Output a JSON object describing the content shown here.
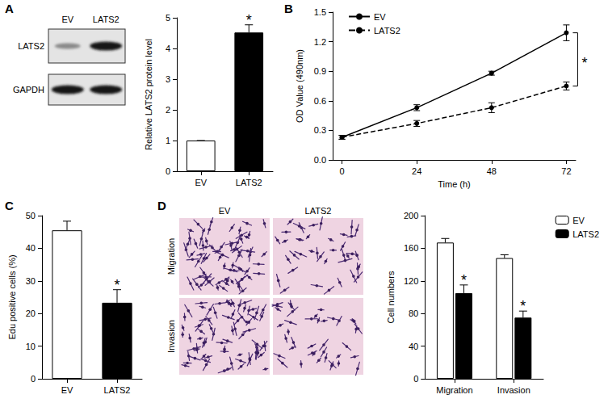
{
  "chart_data": [
    {
      "panel": "A",
      "type": "bar",
      "categories": [
        "EV",
        "LATS2"
      ],
      "values": [
        1,
        4.52
      ],
      "errors": [
        0,
        0.25
      ],
      "colors": [
        "#ffffff",
        "#000000"
      ],
      "ylabel": "Relative LATS2 protein level",
      "ylim": [
        0,
        5
      ],
      "yticks": [
        0,
        1,
        2,
        3,
        4,
        5
      ],
      "grid": false,
      "annotations": [
        {
          "category": "LATS2",
          "text": "*"
        }
      ]
    },
    {
      "panel": "B",
      "type": "line",
      "x": [
        0,
        24,
        48,
        72
      ],
      "series": [
        {
          "name": "EV",
          "color": "#000000",
          "marker": "circle",
          "line_style": "solid",
          "values": [
            0.23,
            0.53,
            0.88,
            1.29
          ],
          "errors": [
            0.02,
            0.03,
            0.02,
            0.08
          ]
        },
        {
          "name": "LATS2",
          "color": "#000000",
          "marker": "circle",
          "line_style": "dashed",
          "values": [
            0.23,
            0.37,
            0.53,
            0.75
          ],
          "errors": [
            0.02,
            0.03,
            0.05,
            0.04
          ]
        }
      ],
      "xlabel": "Time (h)",
      "ylabel": "OD Value (490nm)",
      "xlim": [
        -3,
        75
      ],
      "xticks": [
        0,
        24,
        48,
        72
      ],
      "ylim": [
        0,
        1.5
      ],
      "yticks": [
        {
          "value": 0,
          "label": "0.0"
        },
        0.3,
        0.6,
        0.9,
        1.2,
        1.5
      ],
      "legend": "top-left",
      "grid": false,
      "annotations": [
        {
          "x": 72,
          "between": [
            "EV",
            "LATS2"
          ],
          "text": "*"
        }
      ]
    },
    {
      "panel": "C",
      "type": "bar",
      "categories": [
        "EV",
        "LATS2"
      ],
      "values": [
        45.5,
        23.3
      ],
      "errors": [
        2.8,
        4
      ],
      "colors": [
        "#ffffff",
        "#000000"
      ],
      "ylabel": "Edu positive cells (%)",
      "ylim": [
        0,
        50
      ],
      "yticks": [
        0,
        10,
        20,
        30,
        40,
        50
      ],
      "grid": false,
      "annotations": [
        {
          "category": "LATS2",
          "text": "*"
        }
      ]
    },
    {
      "panel": "D",
      "type": "bar",
      "categories": [
        "Migration",
        "Invasion"
      ],
      "series": [
        {
          "name": "EV",
          "color": "#ffffff",
          "values": [
            167,
            148
          ],
          "errors": [
            5,
            4
          ]
        },
        {
          "name": "LATS2",
          "color": "#000000",
          "values": [
            105,
            75
          ],
          "errors": [
            10,
            8
          ]
        }
      ],
      "ylabel": "Cell numbers",
      "ylim": [
        0,
        200
      ],
      "yticks": [
        0,
        40,
        80,
        120,
        160,
        200
      ],
      "legend": "top-right",
      "grid": false,
      "annotations": [
        {
          "series": "LATS2",
          "category": "Migration",
          "text": "*"
        },
        {
          "series": "LATS2",
          "category": "Invasion",
          "text": "*"
        }
      ]
    }
  ],
  "blot": {
    "columns": [
      "EV",
      "LATS2"
    ],
    "rows": [
      "LATS2",
      "GAPDH"
    ]
  },
  "micrographs": {
    "columns": [
      "EV",
      "LATS2"
    ],
    "rows": [
      "Migration",
      "Invasion"
    ]
  }
}
